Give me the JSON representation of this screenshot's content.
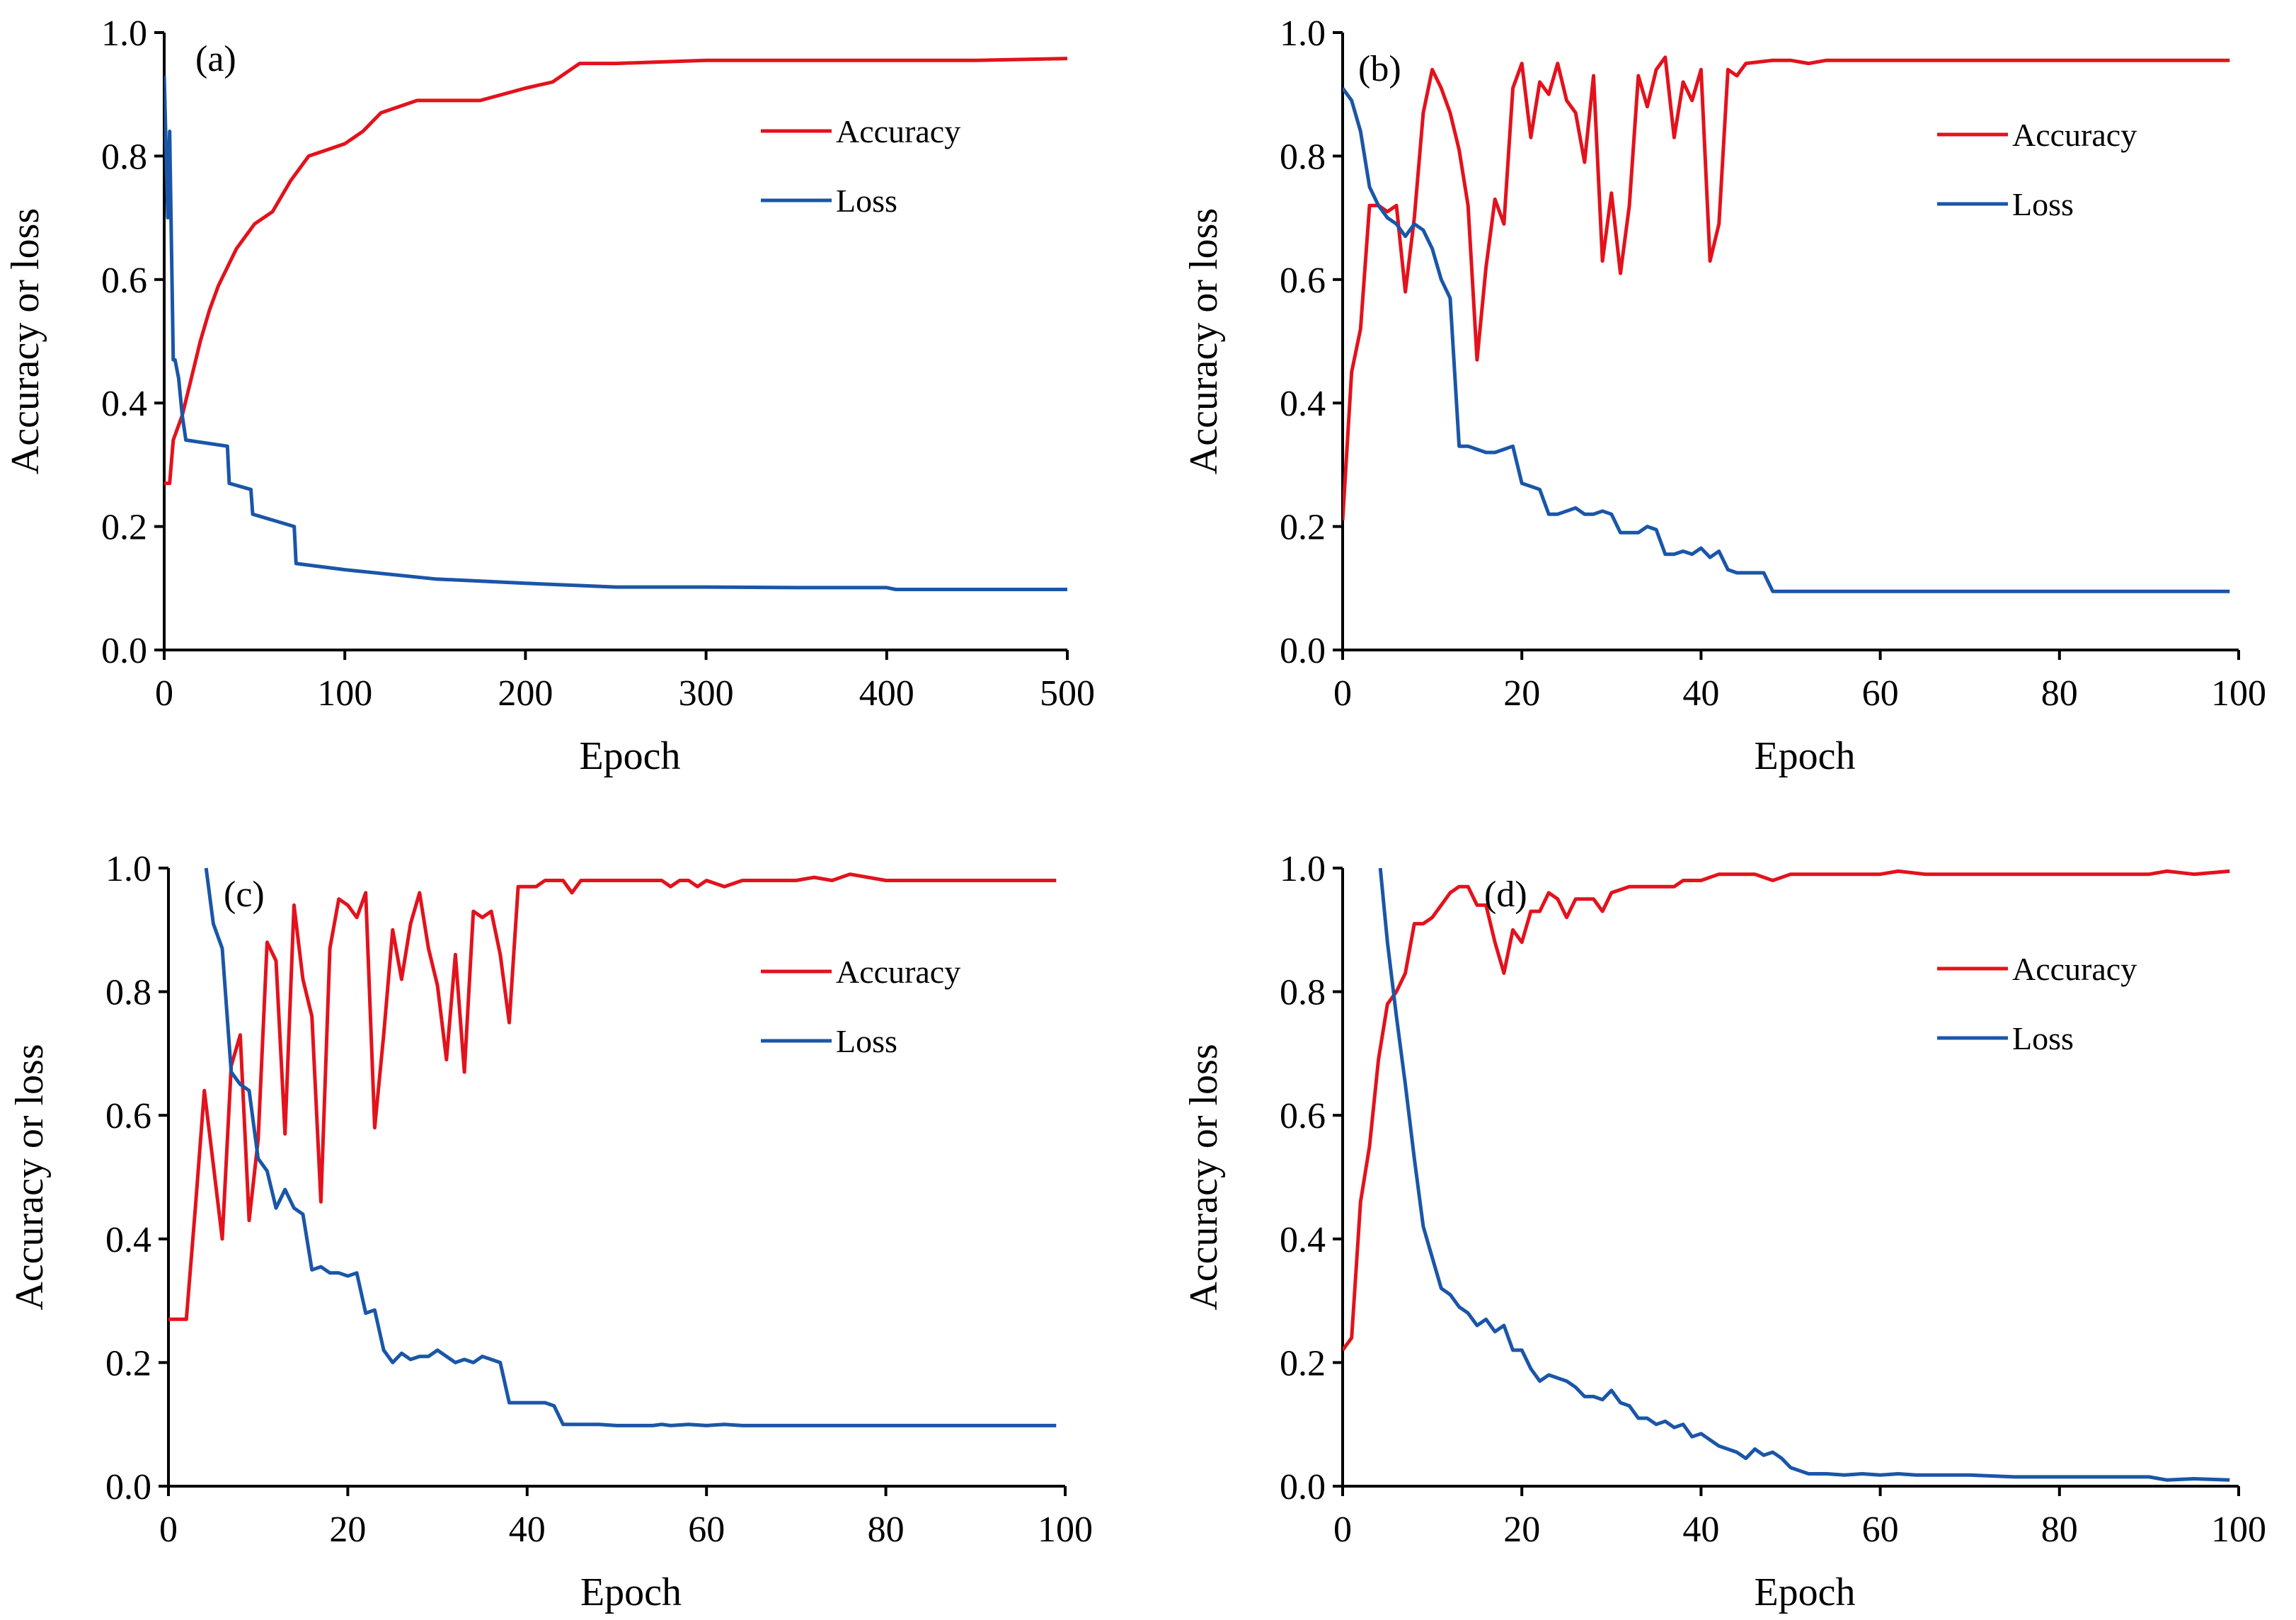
{
  "colors": {
    "accuracy": "#e3121c",
    "loss": "#1a56a8",
    "axis": "#000000"
  },
  "chart_data": [
    {
      "type": "line",
      "panel_label": "(a)",
      "xlabel": "Epoch",
      "ylabel": "Accuracy or loss",
      "xlim": [
        0,
        500
      ],
      "ylim": [
        0,
        1.0
      ],
      "xticks": [
        "0",
        "100",
        "200",
        "300",
        "400",
        "500"
      ],
      "yticks": [
        "0.0",
        "0.2",
        "0.4",
        "0.6",
        "0.8",
        "1.0"
      ],
      "legend_position": "top-right",
      "series": [
        {
          "name": "Accuracy",
          "x": [
            0,
            3,
            5,
            10,
            15,
            20,
            25,
            30,
            35,
            40,
            45,
            50,
            60,
            70,
            80,
            90,
            100,
            110,
            120,
            130,
            140,
            150,
            175,
            200,
            215,
            230,
            250,
            300,
            350,
            400,
            450,
            500
          ],
          "y": [
            0.27,
            0.27,
            0.34,
            0.38,
            0.44,
            0.5,
            0.55,
            0.59,
            0.62,
            0.65,
            0.67,
            0.69,
            0.71,
            0.76,
            0.8,
            0.81,
            0.82,
            0.84,
            0.87,
            0.88,
            0.89,
            0.89,
            0.89,
            0.91,
            0.92,
            0.95,
            0.95,
            0.955,
            0.955,
            0.955,
            0.955,
            0.958
          ]
        },
        {
          "name": "Loss",
          "x": [
            0,
            2,
            3,
            5,
            6,
            8,
            10,
            12,
            35,
            36,
            48,
            49,
            72,
            73,
            100,
            150,
            200,
            250,
            300,
            350,
            400,
            405,
            450,
            500
          ],
          "y": [
            0.93,
            0.7,
            0.84,
            0.47,
            0.47,
            0.44,
            0.38,
            0.34,
            0.33,
            0.27,
            0.26,
            0.22,
            0.2,
            0.14,
            0.13,
            0.115,
            0.108,
            0.102,
            0.102,
            0.101,
            0.101,
            0.098,
            0.098,
            0.098
          ]
        }
      ]
    },
    {
      "type": "line",
      "panel_label": "(b)",
      "xlabel": "Epoch",
      "ylabel": "Accuracy or loss",
      "xlim": [
        0,
        100
      ],
      "ylim": [
        0,
        1.0
      ],
      "xticks": [
        "0",
        "20",
        "40",
        "60",
        "80",
        "100"
      ],
      "yticks": [
        "0.0",
        "0.2",
        "0.4",
        "0.6",
        "0.8",
        "1.0"
      ],
      "legend_position": "top-right",
      "series": [
        {
          "name": "Accuracy",
          "x": [
            0,
            1,
            2,
            3,
            4,
            5,
            6,
            7,
            8,
            9,
            10,
            11,
            12,
            13,
            14,
            15,
            16,
            17,
            18,
            19,
            20,
            21,
            22,
            23,
            24,
            25,
            26,
            27,
            28,
            29,
            30,
            31,
            32,
            33,
            34,
            35,
            36,
            37,
            38,
            39,
            40,
            41,
            42,
            43,
            44,
            45,
            48,
            50,
            52,
            54,
            60,
            70,
            80,
            90,
            99
          ],
          "y": [
            0.21,
            0.45,
            0.52,
            0.72,
            0.72,
            0.71,
            0.72,
            0.58,
            0.7,
            0.87,
            0.94,
            0.91,
            0.87,
            0.81,
            0.72,
            0.47,
            0.62,
            0.73,
            0.69,
            0.91,
            0.95,
            0.83,
            0.92,
            0.9,
            0.95,
            0.89,
            0.87,
            0.79,
            0.93,
            0.63,
            0.74,
            0.61,
            0.72,
            0.93,
            0.88,
            0.94,
            0.96,
            0.83,
            0.92,
            0.89,
            0.94,
            0.63,
            0.69,
            0.94,
            0.93,
            0.95,
            0.955,
            0.955,
            0.95,
            0.955,
            0.955,
            0.955,
            0.955,
            0.955,
            0.955
          ]
        },
        {
          "name": "Loss",
          "x": [
            0,
            1,
            2,
            3,
            4,
            5,
            6,
            7,
            8,
            9,
            10,
            11,
            12,
            13,
            14,
            15,
            16,
            17,
            18,
            19,
            20,
            21,
            22,
            23,
            24,
            25,
            26,
            27,
            28,
            29,
            30,
            31,
            32,
            33,
            34,
            35,
            36,
            37,
            38,
            39,
            40,
            41,
            42,
            43,
            44,
            45,
            47,
            48,
            60,
            80,
            99
          ],
          "y": [
            0.91,
            0.89,
            0.84,
            0.75,
            0.72,
            0.7,
            0.69,
            0.67,
            0.69,
            0.68,
            0.65,
            0.6,
            0.57,
            0.33,
            0.33,
            0.325,
            0.32,
            0.32,
            0.325,
            0.33,
            0.27,
            0.265,
            0.26,
            0.22,
            0.22,
            0.225,
            0.23,
            0.22,
            0.22,
            0.225,
            0.22,
            0.19,
            0.19,
            0.19,
            0.2,
            0.195,
            0.155,
            0.155,
            0.16,
            0.155,
            0.165,
            0.15,
            0.16,
            0.13,
            0.125,
            0.125,
            0.125,
            0.095,
            0.095,
            0.095,
            0.095
          ]
        }
      ]
    },
    {
      "type": "line",
      "panel_label": "(c)",
      "xlabel": "Epoch",
      "ylabel": "Accuracy or loss",
      "xlim": [
        0,
        100
      ],
      "ylim": [
        0,
        1.0
      ],
      "xticks": [
        "0",
        "20",
        "40",
        "60",
        "80",
        "100"
      ],
      "yticks": [
        "0.0",
        "0.2",
        "0.4",
        "0.6",
        "0.8",
        "1.0"
      ],
      "legend_position": "top-right",
      "series": [
        {
          "name": "Accuracy",
          "x": [
            0,
            1,
            2,
            3,
            4,
            5,
            6,
            7,
            8,
            9,
            10,
            11,
            12,
            13,
            14,
            15,
            16,
            17,
            18,
            19,
            20,
            21,
            22,
            23,
            24,
            25,
            26,
            27,
            28,
            29,
            30,
            31,
            32,
            33,
            34,
            35,
            36,
            37,
            38,
            39,
            40,
            41,
            42,
            43,
            44,
            45,
            46,
            50,
            55,
            56,
            57,
            58,
            59,
            60,
            62,
            64,
            70,
            72,
            74,
            76,
            80,
            90,
            99
          ],
          "y": [
            0.27,
            0.27,
            0.27,
            0.45,
            0.64,
            0.52,
            0.4,
            0.68,
            0.73,
            0.43,
            0.56,
            0.88,
            0.85,
            0.57,
            0.94,
            0.82,
            0.76,
            0.46,
            0.87,
            0.95,
            0.94,
            0.92,
            0.96,
            0.58,
            0.73,
            0.9,
            0.82,
            0.91,
            0.96,
            0.87,
            0.81,
            0.69,
            0.86,
            0.67,
            0.93,
            0.92,
            0.93,
            0.86,
            0.75,
            0.97,
            0.97,
            0.97,
            0.98,
            0.98,
            0.98,
            0.96,
            0.98,
            0.98,
            0.98,
            0.97,
            0.98,
            0.98,
            0.97,
            0.98,
            0.97,
            0.98,
            0.98,
            0.985,
            0.98,
            0.99,
            0.98,
            0.98,
            0.98
          ]
        },
        {
          "name": "Loss",
          "x": [
            4.2,
            5,
            6,
            7,
            8,
            9,
            10,
            11,
            12,
            13,
            14,
            15,
            16,
            17,
            18,
            19,
            20,
            21,
            22,
            23,
            24,
            25,
            26,
            27,
            28,
            29,
            30,
            31,
            32,
            33,
            34,
            35,
            36,
            37,
            38,
            39,
            40,
            41,
            42,
            43,
            44,
            45,
            46,
            47,
            48,
            50,
            52,
            54,
            55,
            56,
            58,
            60,
            62,
            64,
            70,
            80,
            90,
            99
          ],
          "y": [
            1.0,
            0.91,
            0.87,
            0.67,
            0.65,
            0.64,
            0.53,
            0.51,
            0.45,
            0.48,
            0.45,
            0.44,
            0.35,
            0.355,
            0.345,
            0.345,
            0.34,
            0.345,
            0.28,
            0.285,
            0.22,
            0.2,
            0.215,
            0.205,
            0.21,
            0.21,
            0.22,
            0.21,
            0.2,
            0.205,
            0.2,
            0.21,
            0.205,
            0.2,
            0.135,
            0.135,
            0.135,
            0.135,
            0.135,
            0.13,
            0.1,
            0.1,
            0.1,
            0.1,
            0.1,
            0.098,
            0.098,
            0.098,
            0.1,
            0.098,
            0.1,
            0.098,
            0.1,
            0.098,
            0.098,
            0.098,
            0.098,
            0.098
          ]
        }
      ]
    },
    {
      "type": "line",
      "panel_label": "(d)",
      "xlabel": "Epoch",
      "ylabel": "Accuracy or loss",
      "xlim": [
        0,
        100
      ],
      "ylim": [
        0,
        1.0
      ],
      "xticks": [
        "0",
        "20",
        "40",
        "60",
        "80",
        "100"
      ],
      "yticks": [
        "0.0",
        "0.2",
        "0.4",
        "0.6",
        "0.8",
        "1.0"
      ],
      "legend_position": "top-right",
      "series": [
        {
          "name": "Accuracy",
          "x": [
            0,
            1,
            2,
            3,
            4,
            5,
            6,
            7,
            8,
            9,
            10,
            11,
            12,
            13,
            14,
            15,
            16,
            17,
            18,
            19,
            20,
            21,
            22,
            23,
            24,
            25,
            26,
            27,
            28,
            29,
            30,
            32,
            34,
            36,
            37,
            38,
            40,
            42,
            44,
            46,
            48,
            50,
            55,
            60,
            62,
            65,
            70,
            75,
            80,
            85,
            90,
            92,
            95,
            99
          ],
          "y": [
            0.22,
            0.24,
            0.46,
            0.55,
            0.69,
            0.78,
            0.8,
            0.83,
            0.91,
            0.91,
            0.92,
            0.94,
            0.96,
            0.97,
            0.97,
            0.94,
            0.94,
            0.88,
            0.83,
            0.9,
            0.88,
            0.93,
            0.93,
            0.96,
            0.95,
            0.92,
            0.95,
            0.95,
            0.95,
            0.93,
            0.96,
            0.97,
            0.97,
            0.97,
            0.97,
            0.98,
            0.98,
            0.99,
            0.99,
            0.99,
            0.98,
            0.99,
            0.99,
            0.99,
            0.995,
            0.99,
            0.99,
            0.99,
            0.99,
            0.99,
            0.99,
            0.995,
            0.99,
            0.995
          ]
        },
        {
          "name": "Loss",
          "x": [
            4.2,
            5,
            6,
            7,
            8,
            9,
            10,
            11,
            12,
            13,
            14,
            15,
            16,
            17,
            18,
            19,
            20,
            21,
            22,
            23,
            24,
            25,
            26,
            27,
            28,
            29,
            30,
            31,
            32,
            33,
            34,
            35,
            36,
            37,
            38,
            39,
            40,
            42,
            44,
            45,
            46,
            47,
            48,
            49,
            50,
            52,
            54,
            56,
            58,
            60,
            62,
            64,
            70,
            75,
            80,
            90,
            92,
            95,
            99
          ],
          "y": [
            1.0,
            0.88,
            0.76,
            0.65,
            0.53,
            0.42,
            0.37,
            0.32,
            0.31,
            0.29,
            0.28,
            0.26,
            0.27,
            0.25,
            0.26,
            0.22,
            0.22,
            0.19,
            0.17,
            0.18,
            0.175,
            0.17,
            0.16,
            0.145,
            0.145,
            0.14,
            0.155,
            0.135,
            0.13,
            0.11,
            0.11,
            0.1,
            0.105,
            0.095,
            0.1,
            0.08,
            0.085,
            0.065,
            0.055,
            0.045,
            0.06,
            0.05,
            0.055,
            0.045,
            0.03,
            0.02,
            0.02,
            0.018,
            0.02,
            0.018,
            0.02,
            0.018,
            0.018,
            0.015,
            0.015,
            0.015,
            0.01,
            0.012,
            0.01
          ]
        }
      ]
    }
  ]
}
